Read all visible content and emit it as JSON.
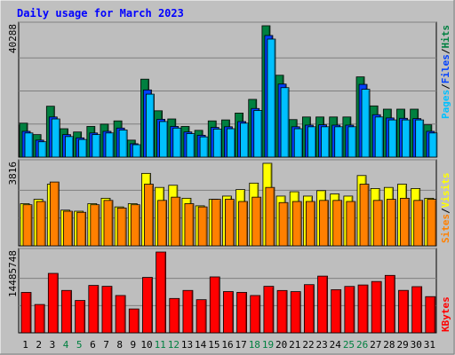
{
  "title": "Daily usage for March 2023",
  "colors": {
    "background": "#c0c0c0",
    "plot": "#bebebe",
    "title": "#0000ff",
    "hits": "#008040",
    "files": "#0040ff",
    "pages": "#00c0ff",
    "visits": "#ffff00",
    "sites": "#ff8000",
    "kbytes": "#ff0000",
    "weekend": "#008040",
    "weekday": "#000000"
  },
  "chart_data": [
    {
      "type": "bar",
      "title": "Daily usage for March 2023",
      "ymax_label": "40288",
      "ylim": [
        0,
        40288
      ],
      "categories": [
        "1",
        "2",
        "3",
        "4",
        "5",
        "6",
        "7",
        "8",
        "9",
        "10",
        "11",
        "12",
        "13",
        "14",
        "15",
        "16",
        "17",
        "18",
        "19",
        "20",
        "21",
        "22",
        "23",
        "24",
        "25",
        "26",
        "27",
        "28",
        "29",
        "30",
        "31"
      ],
      "weekend_days": [
        "4",
        "5",
        "11",
        "12",
        "18",
        "19",
        "25",
        "26"
      ],
      "series": [
        {
          "name": "Hits",
          "values": [
            10400,
            6900,
            15600,
            8700,
            7700,
            9400,
            10100,
            11100,
            5200,
            23900,
            14200,
            11700,
            9400,
            8200,
            11100,
            11400,
            13500,
            17700,
            40288,
            25100,
            11500,
            12300,
            12300,
            12300,
            12300,
            24600,
            15700,
            14700,
            14700,
            14700,
            9900
          ]
        },
        {
          "name": "Files",
          "values": [
            7900,
            5200,
            12300,
            6900,
            5900,
            7400,
            7900,
            8900,
            4100,
            20600,
            11600,
            9400,
            7700,
            6700,
            9100,
            9300,
            10900,
            14900,
            37300,
            22400,
            9300,
            9800,
            9900,
            9800,
            9800,
            22300,
            13000,
            12000,
            11900,
            11800,
            7900
          ]
        },
        {
          "name": "Pages",
          "values": [
            7400,
            4700,
            11700,
            6300,
            5400,
            6900,
            7400,
            8300,
            3800,
            19300,
            10900,
            8900,
            7200,
            6200,
            8600,
            8700,
            10400,
            14300,
            36200,
            21300,
            8700,
            9300,
            9300,
            9300,
            9300,
            20800,
            12300,
            11400,
            11400,
            11400,
            7400
          ]
        }
      ]
    },
    {
      "type": "bar",
      "ymax_label": "3816",
      "ylim": [
        0,
        3816
      ],
      "categories": [
        "1",
        "2",
        "3",
        "4",
        "5",
        "6",
        "7",
        "8",
        "9",
        "10",
        "11",
        "12",
        "13",
        "14",
        "15",
        "16",
        "17",
        "18",
        "19",
        "20",
        "21",
        "22",
        "23",
        "24",
        "25",
        "26",
        "27",
        "28",
        "29",
        "30",
        "31"
      ],
      "series": [
        {
          "name": "Visits",
          "values": [
            1950,
            2150,
            2850,
            1650,
            1600,
            1950,
            2200,
            1800,
            1950,
            3350,
            2700,
            2800,
            2200,
            1850,
            2150,
            2300,
            2600,
            2900,
            3816,
            2300,
            2500,
            2300,
            2550,
            2400,
            2300,
            3250,
            2650,
            2700,
            2850,
            2650,
            2200
          ]
        },
        {
          "name": "Sites",
          "values": [
            1900,
            2050,
            2950,
            1600,
            1550,
            1900,
            2100,
            1750,
            1900,
            2850,
            2100,
            2250,
            1950,
            1800,
            2150,
            2150,
            2050,
            2250,
            2700,
            2000,
            2050,
            2050,
            2100,
            2100,
            2050,
            2850,
            2100,
            2150,
            2200,
            2100,
            2150
          ]
        }
      ]
    },
    {
      "type": "bar",
      "ymax_label": "14485748",
      "ylim": [
        0,
        14485748
      ],
      "categories": [
        "1",
        "2",
        "3",
        "4",
        "5",
        "6",
        "7",
        "8",
        "9",
        "10",
        "11",
        "12",
        "13",
        "14",
        "15",
        "16",
        "17",
        "18",
        "19",
        "20",
        "21",
        "22",
        "23",
        "24",
        "25",
        "26",
        "27",
        "28",
        "29",
        "30",
        "31"
      ],
      "series": [
        {
          "name": "KBytes",
          "values": [
            7250000,
            5080000,
            10660000,
            7600000,
            5800000,
            8500000,
            8340000,
            6690000,
            4280000,
            9940000,
            14485748,
            6160000,
            7600000,
            5940000,
            10030000,
            7400000,
            7250000,
            6690000,
            8340000,
            7590000,
            7390000,
            8640000,
            10170000,
            7740000,
            8320000,
            8580000,
            9200000,
            10300000,
            7610000,
            8280000,
            6490000
          ]
        }
      ]
    }
  ],
  "side_labels": {
    "top": [
      "Pages",
      "Files",
      "Hits"
    ],
    "middle": [
      "Sites",
      "Visits"
    ],
    "bottom": [
      "KBytes"
    ],
    "separator": "/"
  }
}
